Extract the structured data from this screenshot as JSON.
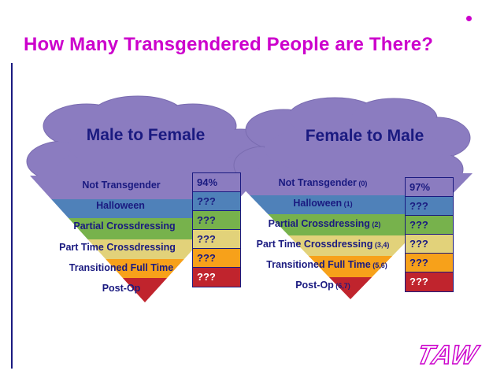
{
  "title": "How Many Transgendered People are There?",
  "colors": {
    "accent": "#cc00cc",
    "text": "#1a1a80",
    "cloud": "#8b7cc0",
    "bands": [
      "#8b7cc0",
      "#4f81b9",
      "#77b24c",
      "#e2d27a",
      "#f7a11a",
      "#c0242d"
    ]
  },
  "mtf": {
    "heading": "Male to Female",
    "levels": [
      {
        "label": "Not Transgender",
        "suffix": ""
      },
      {
        "label": "Halloween",
        "suffix": ""
      },
      {
        "label": "Partial Crossdressing",
        "suffix": ""
      },
      {
        "label": "Part Time Crossdressing",
        "suffix": ""
      },
      {
        "label": "Transitioned Full Time",
        "suffix": ""
      },
      {
        "label": "Post-Op",
        "suffix": ""
      }
    ],
    "values": [
      "94%",
      "???",
      "???",
      "???",
      "???",
      "???"
    ]
  },
  "ftm": {
    "heading": "Female to Male",
    "levels": [
      {
        "label": "Not Transgender",
        "suffix": "(0)"
      },
      {
        "label": "Halloween",
        "suffix": "(1)"
      },
      {
        "label": "Partial Crossdressing",
        "suffix": "(2)"
      },
      {
        "label": "Part Time Crossdressing",
        "suffix": "(3,4)"
      },
      {
        "label": "Transitioned Full Time",
        "suffix": "(5,6)"
      },
      {
        "label": "Post-Op",
        "suffix": "(6,7)"
      }
    ],
    "values": [
      "97%",
      "???",
      "???",
      "???",
      "???",
      "???"
    ]
  },
  "logo": "TAW"
}
